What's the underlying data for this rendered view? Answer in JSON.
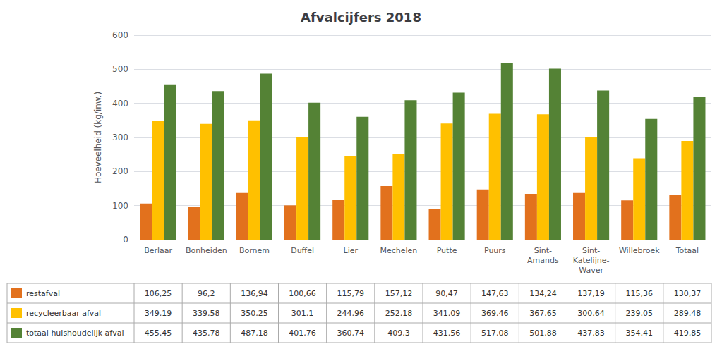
{
  "chart_data": {
    "type": "bar",
    "title": "Afvalcijfers 2018",
    "ylabel": "Hoeveelheid (kg/inw.)",
    "categories": [
      "Berlaar",
      "Bonheiden",
      "Bornem",
      "Duffel",
      "Lier",
      "Mechelen",
      "Putte",
      "Puurs",
      "Sint-\nAmands",
      "Sint-\nKatelijne-\nWaver",
      "Willebroek",
      "Totaal"
    ],
    "series": [
      {
        "name": "restafval",
        "color": "#E2711D",
        "values": [
          106.25,
          96.2,
          136.94,
          100.66,
          115.79,
          157.12,
          90.47,
          147.63,
          134.24,
          137.19,
          115.36,
          130.37
        ],
        "table_labels": [
          "106,25",
          "96,2",
          "136,94",
          "100,66",
          "115,79",
          "157,12",
          "90,47",
          "147,63",
          "134,24",
          "137,19",
          "115,36",
          "130,37"
        ]
      },
      {
        "name": "recycleerbaar afval",
        "color": "#FFC000",
        "values": [
          349.19,
          339.58,
          350.25,
          301.1,
          244.96,
          252.18,
          341.09,
          369.46,
          367.65,
          300.64,
          239.05,
          289.48
        ],
        "table_labels": [
          "349,19",
          "339,58",
          "350,25",
          "301,1",
          "244,96",
          "252,18",
          "341,09",
          "369,46",
          "367,65",
          "300,64",
          "239,05",
          "289,48"
        ]
      },
      {
        "name": "totaal huishoudelijk afval",
        "color": "#548235",
        "values": [
          455.45,
          435.78,
          487.18,
          401.76,
          360.74,
          409.3,
          431.56,
          517.08,
          501.88,
          437.83,
          354.41,
          419.85
        ],
        "table_labels": [
          "455,45",
          "435,78",
          "487,18",
          "401,76",
          "360,74",
          "409,3",
          "431,56",
          "517,08",
          "501,88",
          "437,83",
          "354,41",
          "419,85"
        ]
      }
    ],
    "ylim": [
      0,
      600
    ],
    "yticks": [
      0,
      100,
      200,
      300,
      400,
      500,
      600
    ],
    "grid": true
  }
}
